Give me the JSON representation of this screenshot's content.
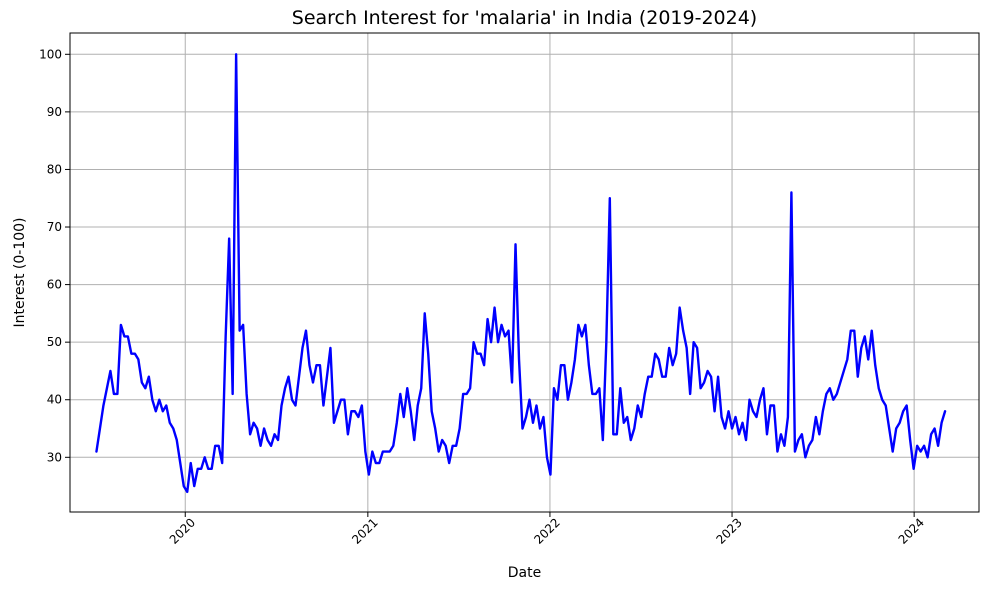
{
  "chart_data": {
    "type": "line",
    "title": "Search Interest for 'malaria' in India (2019-2024)",
    "xlabel": "Date",
    "ylabel": "Interest (0-100)",
    "grid": true,
    "xlim": [
      "2019-05-15",
      "2024-05-10"
    ],
    "ylim": [
      20.5,
      103.7
    ],
    "x_ticks": [
      "2020",
      "2021",
      "2022",
      "2023",
      "2024"
    ],
    "y_ticks": [
      30,
      40,
      50,
      60,
      70,
      80,
      90,
      100
    ],
    "colors": {
      "line": "#0000ff",
      "grid": "#b0b0b0"
    },
    "series": [
      {
        "start": "2019-07-07",
        "interval_days": 7,
        "values": [
          31,
          35,
          39,
          42,
          45,
          41,
          41,
          53,
          51,
          51,
          48,
          48,
          47,
          43,
          42,
          44,
          40,
          38,
          40,
          38,
          39,
          36,
          35,
          33,
          29,
          25,
          24,
          29,
          25,
          28,
          28,
          30,
          28,
          28,
          32,
          32,
          29,
          51,
          68,
          41,
          100,
          52,
          53,
          41,
          34,
          36,
          35,
          32,
          35,
          33,
          32,
          34,
          33,
          39,
          42,
          44,
          40,
          39,
          44,
          49,
          52,
          46,
          43,
          46,
          46,
          39,
          44,
          49,
          36,
          38,
          40,
          40,
          34,
          38,
          38,
          37,
          39,
          31,
          27,
          31,
          29,
          29,
          31,
          31,
          31,
          32,
          36,
          41,
          37,
          42,
          38,
          33,
          39,
          42,
          55,
          48,
          38,
          35,
          31,
          33,
          32,
          29,
          32,
          32,
          35,
          41,
          41,
          42,
          50,
          48,
          48,
          46,
          54,
          50,
          56,
          50,
          53,
          51,
          52,
          43,
          67,
          47,
          35,
          37,
          40,
          36,
          39,
          35,
          37,
          30,
          27,
          42,
          40,
          46,
          46,
          40,
          43,
          47,
          53,
          51,
          53,
          46,
          41,
          41,
          42,
          33,
          50,
          75,
          34,
          34,
          42,
          36,
          37,
          33,
          35,
          39,
          37,
          41,
          44,
          44,
          48,
          47,
          44,
          44,
          49,
          46,
          48,
          56,
          52,
          49,
          41,
          50,
          49,
          42,
          43,
          45,
          44,
          38,
          44,
          37,
          35,
          38,
          35,
          37,
          34,
          36,
          33,
          40,
          38,
          37,
          40,
          42,
          34,
          39,
          39,
          31,
          34,
          32,
          37,
          76,
          31,
          33,
          34,
          30,
          32,
          33,
          37,
          34,
          38,
          41,
          42,
          40,
          41,
          43,
          45,
          47,
          52,
          52,
          44,
          49,
          51,
          47,
          52,
          46,
          42,
          40,
          39,
          35,
          31,
          35,
          36,
          38,
          39,
          33,
          28,
          32,
          31,
          32,
          30,
          34,
          35,
          32,
          36,
          38
        ]
      }
    ]
  }
}
